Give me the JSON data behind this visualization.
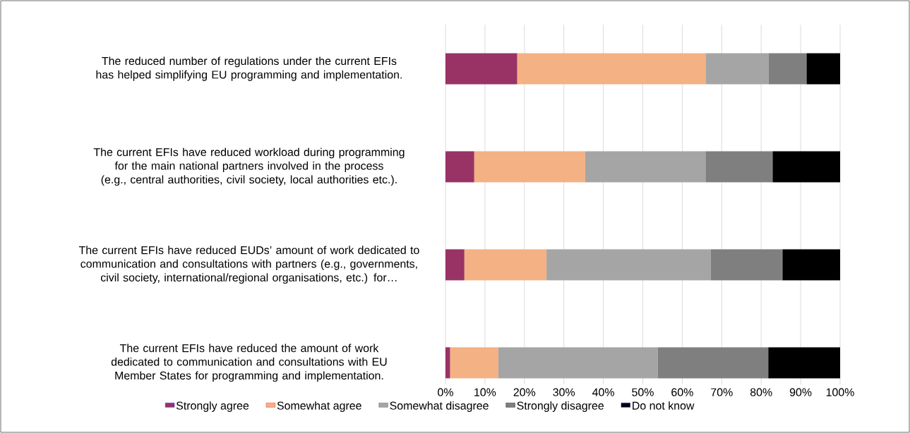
{
  "chart_data": {
    "type": "bar",
    "orientation": "horizontal",
    "stacked": true,
    "categories": [
      "The reduced number of regulations under the current EFIs has helped simplifying EU programming and implementation.",
      "The current EFIs have reduced workload during programming for the main national partners involved in the process (e.g., central authorities, civil society, local authorities etc.).",
      "The current EFIs have reduced EUDs’ amount of work dedicated to communication and consultations with partners (e.g., governments, civil society, international/regional organisations, etc.) for…",
      "The current EFIs have reduced the amount of work dedicated to communication and consultations with EU Member States for programming and implementation."
    ],
    "series": [
      {
        "name": "Strongly agree",
        "color": "#993366",
        "values": [
          18.2,
          7.3,
          4.8,
          1.2
        ]
      },
      {
        "name": "Somewhat agree",
        "color": "#f4b183",
        "values": [
          47.7,
          28.1,
          20.8,
          12.2
        ]
      },
      {
        "name": "Somewhat disagree",
        "color": "#a5a5a5",
        "values": [
          16.0,
          30.5,
          41.6,
          40.4
        ]
      },
      {
        "name": "Strongly disagree",
        "color": "#7f7f7f",
        "values": [
          9.6,
          17.0,
          18.2,
          28.0
        ]
      },
      {
        "name": "Do not know",
        "color": "#000000",
        "values": [
          8.5,
          17.1,
          14.6,
          18.2
        ]
      }
    ],
    "xlim": [
      0,
      100
    ],
    "xticks": [
      {
        "value": 0,
        "label": "0%"
      },
      {
        "value": 10,
        "label": "10%"
      },
      {
        "value": 20,
        "label": "20%"
      },
      {
        "value": 30,
        "label": "30%"
      },
      {
        "value": 40,
        "label": "40%"
      },
      {
        "value": 50,
        "label": "50%"
      },
      {
        "value": 60,
        "label": "60%"
      },
      {
        "value": 70,
        "label": "70%"
      },
      {
        "value": 80,
        "label": "80%"
      },
      {
        "value": 90,
        "label": "90%"
      },
      {
        "value": 100,
        "label": "100%"
      }
    ],
    "grid": "x",
    "legend": "bottom"
  }
}
